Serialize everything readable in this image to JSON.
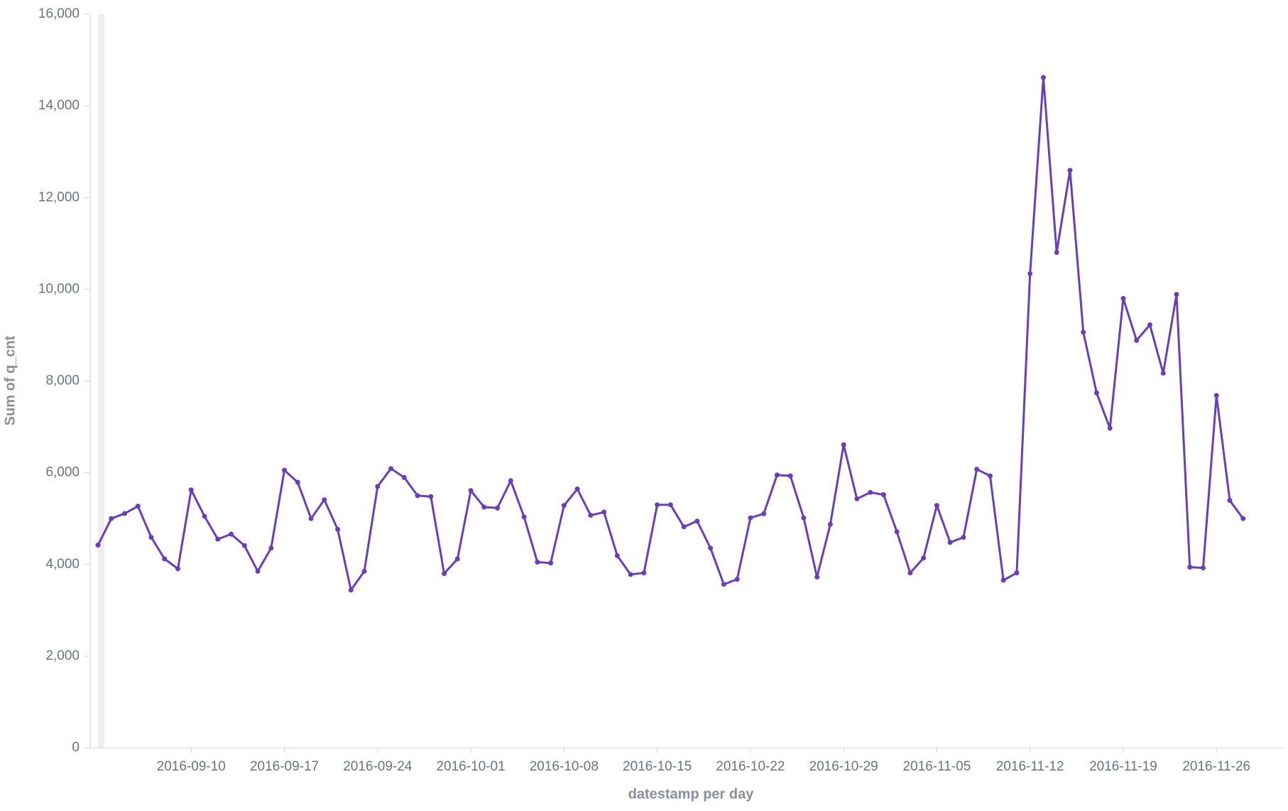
{
  "chart_data": {
    "type": "line",
    "xlabel": "datestamp per day",
    "ylabel": "Sum of q_cnt",
    "x": [
      "2016-09-03",
      "2016-09-04",
      "2016-09-05",
      "2016-09-06",
      "2016-09-07",
      "2016-09-08",
      "2016-09-09",
      "2016-09-10",
      "2016-09-11",
      "2016-09-12",
      "2016-09-13",
      "2016-09-14",
      "2016-09-15",
      "2016-09-16",
      "2016-09-17",
      "2016-09-18",
      "2016-09-19",
      "2016-09-20",
      "2016-09-21",
      "2016-09-22",
      "2016-09-23",
      "2016-09-24",
      "2016-09-25",
      "2016-09-26",
      "2016-09-27",
      "2016-09-28",
      "2016-09-29",
      "2016-09-30",
      "2016-10-01",
      "2016-10-02",
      "2016-10-03",
      "2016-10-04",
      "2016-10-05",
      "2016-10-06",
      "2016-10-07",
      "2016-10-08",
      "2016-10-09",
      "2016-10-10",
      "2016-10-11",
      "2016-10-12",
      "2016-10-13",
      "2016-10-14",
      "2016-10-15",
      "2016-10-16",
      "2016-10-17",
      "2016-10-18",
      "2016-10-19",
      "2016-10-20",
      "2016-10-21",
      "2016-10-22",
      "2016-10-23",
      "2016-10-24",
      "2016-10-25",
      "2016-10-26",
      "2016-10-27",
      "2016-10-28",
      "2016-10-29",
      "2016-10-30",
      "2016-10-31",
      "2016-11-01",
      "2016-11-02",
      "2016-11-03",
      "2016-11-04",
      "2016-11-05",
      "2016-11-06",
      "2016-11-07",
      "2016-11-08",
      "2016-11-09",
      "2016-11-10",
      "2016-11-11",
      "2016-11-12",
      "2016-11-13",
      "2016-11-14",
      "2016-11-15",
      "2016-11-16",
      "2016-11-17",
      "2016-11-18",
      "2016-11-19",
      "2016-11-20",
      "2016-11-21",
      "2016-11-22",
      "2016-11-23",
      "2016-11-24",
      "2016-11-25",
      "2016-11-26",
      "2016-11-27",
      "2016-11-28"
    ],
    "values": [
      4420,
      5000,
      5110,
      5270,
      4590,
      4120,
      3905,
      5625,
      5050,
      4550,
      4660,
      4410,
      3850,
      4355,
      6055,
      5790,
      5000,
      5410,
      4765,
      3440,
      3850,
      5700,
      6090,
      5895,
      5500,
      5480,
      3800,
      4120,
      5610,
      5250,
      5230,
      5825,
      5035,
      4050,
      4030,
      5285,
      5645,
      5070,
      5140,
      4190,
      3780,
      3815,
      5300,
      5300,
      4820,
      4945,
      4355,
      3565,
      3675,
      5015,
      5105,
      5950,
      5930,
      5015,
      3725,
      4875,
      6610,
      5430,
      5570,
      5520,
      4710,
      3815,
      4140,
      5285,
      4480,
      4590,
      6075,
      5930,
      3655,
      3815,
      10340,
      14620,
      10805,
      12595,
      9065,
      7740,
      6970,
      9800,
      8885,
      9225,
      8170,
      9890,
      3940,
      3925,
      7685,
      5395,
      5000
    ],
    "color": "#6a3fb5",
    "xlim": [
      "2016-09-03",
      "2016-12-01"
    ],
    "xticks": [
      "2016-09-10",
      "2016-09-17",
      "2016-09-24",
      "2016-10-01",
      "2016-10-08",
      "2016-10-15",
      "2016-10-22",
      "2016-10-29",
      "2016-11-05",
      "2016-11-12",
      "2016-11-19",
      "2016-11-26"
    ],
    "ylim": [
      0,
      16000
    ],
    "yticks": [
      0,
      {
        "value": 2000,
        "label": "2,000"
      },
      {
        "value": 4000,
        "label": "4,000"
      },
      {
        "value": 6000,
        "label": "6,000"
      },
      {
        "value": 8000,
        "label": "8,000"
      },
      {
        "value": 10000,
        "label": "10,000"
      },
      {
        "value": 12000,
        "label": "12,000"
      },
      {
        "value": 14000,
        "label": "14,000"
      },
      {
        "value": 16000,
        "label": "16,000"
      }
    ]
  }
}
